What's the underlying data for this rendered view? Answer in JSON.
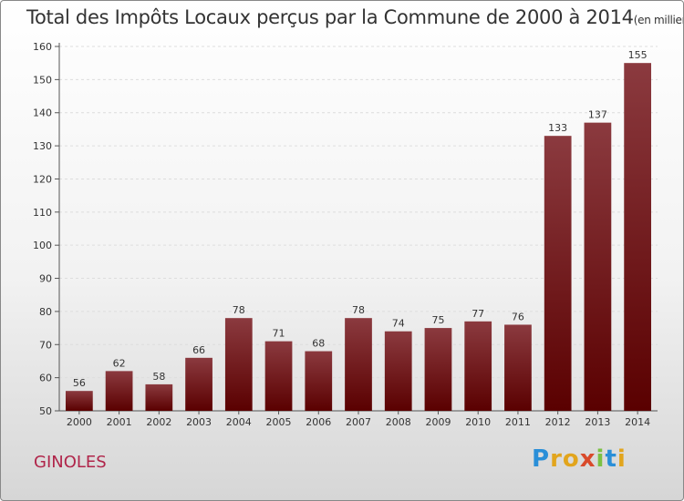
{
  "header": {
    "title": "Total des Impôts Locaux perçus par la Commune de 2000 à 2014",
    "unit": "(en milliers d'€)"
  },
  "commune": "GINOLES",
  "logo": {
    "letters": [
      "P",
      "r",
      "o",
      "x",
      "i",
      "t",
      "i"
    ]
  },
  "colors": {
    "bar_top": "#8b3a3f",
    "bar_bottom": "#5a0000",
    "commune": "#b0254a"
  },
  "chart_data": {
    "type": "bar",
    "title": "Total des Impôts Locaux perçus par la Commune de 2000 à 2014",
    "categories": [
      "2000",
      "2001",
      "2002",
      "2003",
      "2004",
      "2005",
      "2006",
      "2007",
      "2008",
      "2009",
      "2010",
      "2011",
      "2012",
      "2013",
      "2014"
    ],
    "values": [
      56,
      62,
      58,
      66,
      78,
      71,
      68,
      78,
      74,
      75,
      77,
      76,
      133,
      137,
      155
    ],
    "ylim": [
      50,
      160
    ],
    "yticks": [
      50,
      60,
      70,
      80,
      90,
      100,
      110,
      120,
      130,
      140,
      150,
      160
    ],
    "xlabel": "",
    "ylabel": "",
    "grid": true
  }
}
